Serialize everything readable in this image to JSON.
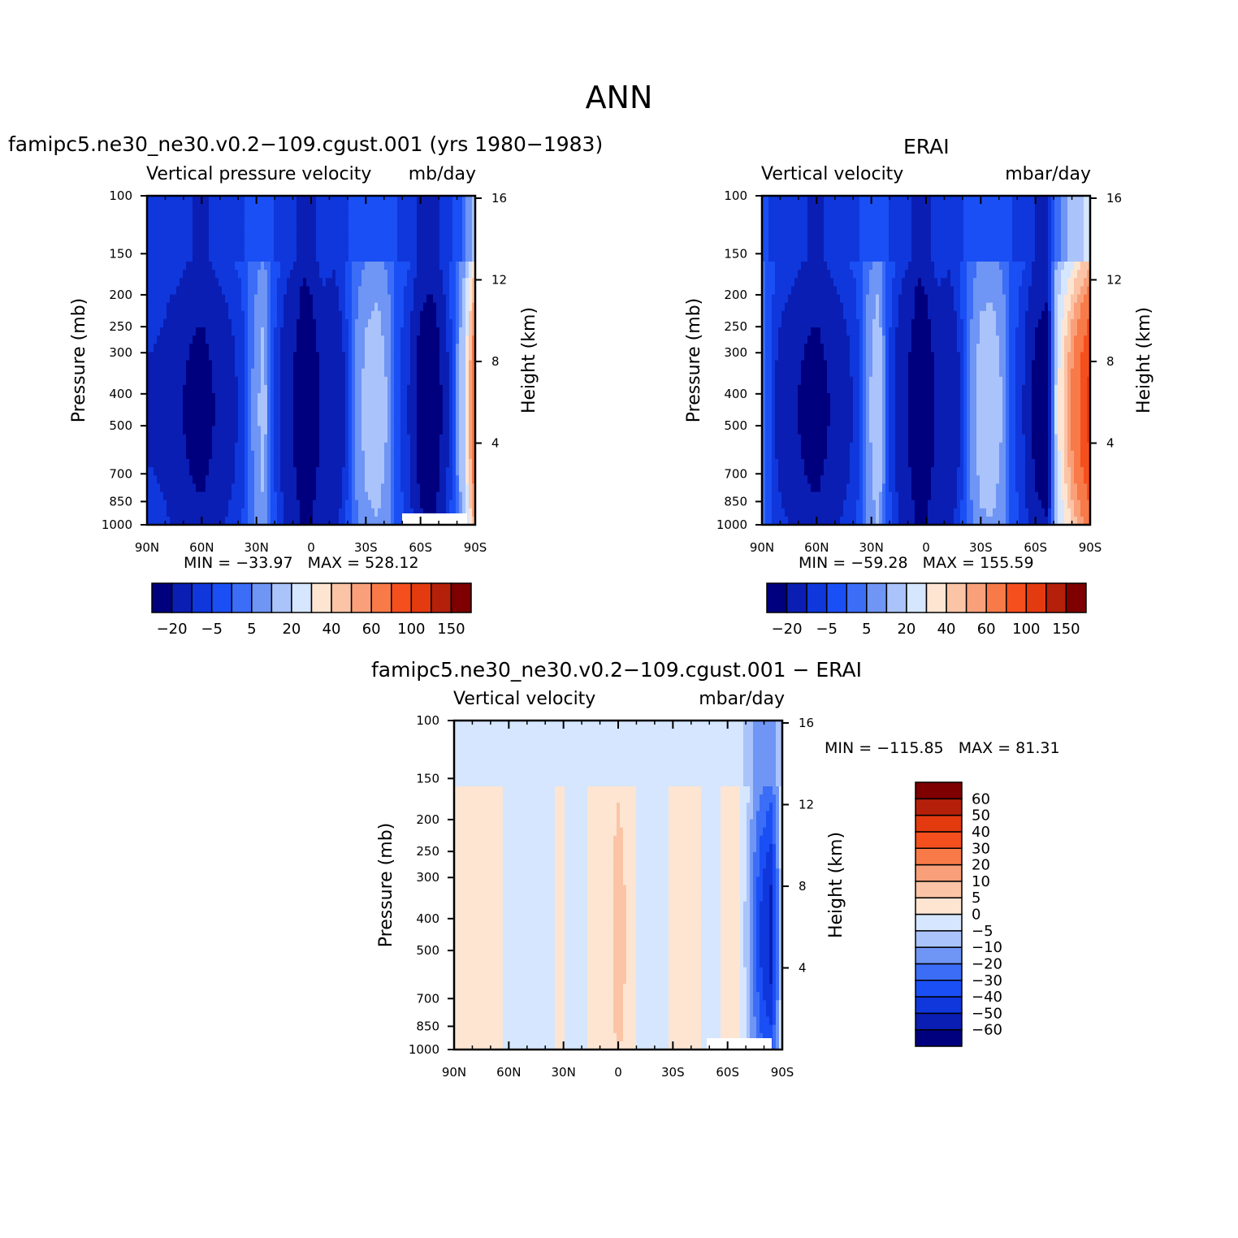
{
  "figure_title": "ANN",
  "colors": {
    "neg_scale": [
      "#00007f",
      "#0a1eb4",
      "#0f37dc",
      "#1a4ff5",
      "#3b6df7",
      "#6f95f5",
      "#aac3fb",
      "#d5e6fe"
    ],
    "pos_scale": [
      "#fde5d2",
      "#fbc4a6",
      "#f9a07a",
      "#f77a48",
      "#f54f1e",
      "#e43a0f",
      "#b5200a",
      "#7e0000"
    ],
    "missing": "#ffffff"
  },
  "chart_data": [
    {
      "type": "heatmap",
      "title": "famipc5.ne30_ne30.v0.2−109.cgust.001 (yrs 1980−1983)",
      "left_label": "Vertical pressure velocity",
      "right_label": "mb/day",
      "xlabel": "",
      "ylabel": "Pressure (mb)",
      "y2label": "Height (km)",
      "x_ticks": [
        "90N",
        "60N",
        "30N",
        "0",
        "30S",
        "60S",
        "90S"
      ],
      "x_tick_values": [
        90,
        60,
        30,
        0,
        -30,
        -60,
        -90
      ],
      "y_ticks": [
        100,
        150,
        200,
        250,
        300,
        400,
        500,
        700,
        850,
        1000
      ],
      "y2_ticks": [
        16,
        12,
        8,
        4
      ],
      "y_scale": "log",
      "min": "−33.97",
      "max": "528.12",
      "stats": {
        "min_label": "MIN =",
        "max_label": "MAX ="
      },
      "levels": [
        -20,
        -10,
        -5,
        0,
        5,
        10,
        20,
        30,
        40,
        50,
        60,
        80,
        100,
        120,
        150
      ],
      "colorbar_labels": [
        "−20",
        "−5",
        "5",
        "20",
        "40",
        "60",
        "100",
        "150"
      ],
      "profile": {
        "lat": [
          90,
          82,
          75,
          68,
          60,
          52,
          45,
          38,
          32,
          26,
          20,
          14,
          8,
          4,
          0,
          -6,
          -12,
          -18,
          -24,
          -30,
          -36,
          -42,
          -48,
          -54,
          -60,
          -66,
          -72,
          -78,
          -84,
          -90
        ],
        "value": [
          -8,
          -9,
          -12,
          -16,
          -19,
          -14,
          -10,
          -6,
          4,
          10,
          -4,
          -12,
          -17,
          -28,
          -23,
          -12,
          -15,
          -8,
          4,
          9,
          11,
          7,
          -3,
          -8,
          -20,
          -24,
          -14,
          -2,
          15,
          60
        ]
      }
    },
    {
      "type": "heatmap",
      "title": "ERAI",
      "left_label": "Vertical velocity",
      "right_label": "mbar/day",
      "xlabel": "",
      "ylabel": "Pressure (mb)",
      "y2label": "Height (km)",
      "x_ticks": [
        "90N",
        "60N",
        "30N",
        "0",
        "30S",
        "60S",
        "90S"
      ],
      "x_tick_values": [
        90,
        60,
        30,
        0,
        -30,
        -60,
        -90
      ],
      "y_ticks": [
        100,
        150,
        200,
        250,
        300,
        400,
        500,
        700,
        850,
        1000
      ],
      "y2_ticks": [
        16,
        12,
        8,
        4
      ],
      "y_scale": "log",
      "min": "−59.28",
      "max": "155.59",
      "stats": {
        "min_label": "MIN =",
        "max_label": "MAX ="
      },
      "levels": [
        -20,
        -10,
        -5,
        0,
        5,
        10,
        20,
        30,
        40,
        50,
        60,
        80,
        100,
        120,
        150
      ],
      "colorbar_labels": [
        "−20",
        "−5",
        "5",
        "20",
        "40",
        "60",
        "100",
        "150"
      ],
      "profile": {
        "lat": [
          90,
          82,
          75,
          68,
          60,
          52,
          45,
          38,
          32,
          26,
          20,
          14,
          8,
          4,
          0,
          -6,
          -12,
          -18,
          -24,
          -30,
          -36,
          -42,
          -48,
          -54,
          -60,
          -66,
          -72,
          -78,
          -84,
          -90
        ],
        "value": [
          2,
          -8,
          -12,
          -16,
          -19,
          -14,
          -10,
          -6,
          6,
          12,
          -4,
          -12,
          -17,
          -28,
          -23,
          -12,
          -15,
          -8,
          4,
          10,
          11,
          7,
          -3,
          -8,
          -18,
          -22,
          20,
          40,
          60,
          80
        ]
      }
    },
    {
      "type": "heatmap",
      "title": "famipc5.ne30_ne30.v0.2−109.cgust.001 − ERAI",
      "left_label": "Vertical velocity",
      "right_label": "mbar/day",
      "xlabel": "",
      "ylabel": "Pressure (mb)",
      "y2label": "Height (km)",
      "x_ticks": [
        "90N",
        "60N",
        "30N",
        "0",
        "30S",
        "60S",
        "90S"
      ],
      "x_tick_values": [
        90,
        60,
        30,
        0,
        -30,
        -60,
        -90
      ],
      "y_ticks": [
        100,
        150,
        200,
        250,
        300,
        400,
        500,
        700,
        850,
        1000
      ],
      "y2_ticks": [
        16,
        12,
        8,
        4
      ],
      "y_scale": "log",
      "min": "−115.85",
      "max": "81.31",
      "stats": {
        "min_label": "MIN =",
        "max_label": "MAX ="
      },
      "levels": [
        -60,
        -50,
        -40,
        -30,
        -20,
        -10,
        -5,
        0,
        5,
        10,
        20,
        30,
        40,
        50,
        60
      ],
      "colorbar_labels": [
        "60",
        "50",
        "40",
        "30",
        "20",
        "10",
        "5",
        "0",
        "−5",
        "−10",
        "−20",
        "−30",
        "−40",
        "−50",
        "−60"
      ],
      "profile": {
        "lat": [
          90,
          82,
          75,
          68,
          60,
          52,
          45,
          38,
          32,
          26,
          20,
          14,
          8,
          4,
          0,
          -6,
          -12,
          -18,
          -24,
          -30,
          -36,
          -42,
          -48,
          -54,
          -60,
          -66,
          -72,
          -78,
          -84,
          -90
        ],
        "value": [
          2,
          2,
          3,
          3,
          -2,
          -2,
          -2,
          -2,
          1,
          -2,
          -2,
          2,
          2,
          3,
          7,
          2,
          -2,
          -2,
          -2,
          2,
          2,
          2,
          -2,
          -2,
          2,
          2,
          -8,
          -30,
          -40,
          2
        ]
      }
    }
  ]
}
